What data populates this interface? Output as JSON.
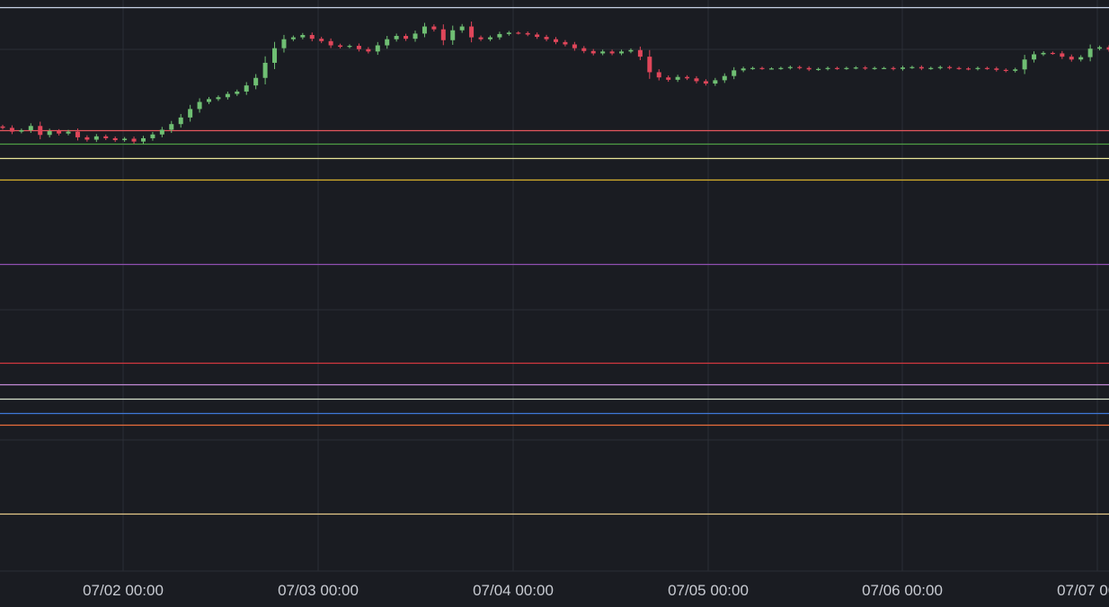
{
  "chart_data": {
    "type": "candlestick",
    "x_range": [
      "07/01 12:00",
      "07/07 08:00"
    ],
    "x_ticks": [
      "07/02 00:00",
      "07/03 00:00",
      "07/04 00:00",
      "07/05 00:00",
      "07/06 00:00",
      "07/07 00:00"
    ],
    "grid": true,
    "colors": {
      "background": "#1a1c22",
      "grid": "#2b2e36",
      "up": "#6fbf73",
      "down": "#e0465a",
      "axis_text": "#c8cbd2"
    },
    "closes": [
      102.4,
      101.6,
      101.9,
      102.8,
      100.9,
      101.7,
      101.2,
      101.6,
      100.4,
      99.9,
      100.6,
      100.2,
      99.8,
      100.1,
      99.5,
      100.2,
      101.0,
      102.0,
      103.2,
      104.6,
      106.4,
      107.9,
      108.5,
      108.9,
      109.6,
      110.1,
      111.4,
      113.0,
      116.2,
      119.3,
      121.2,
      121.6,
      122.1,
      121.3,
      120.8,
      119.9,
      119.6,
      119.8,
      119.1,
      118.6,
      119.9,
      121.2,
      121.9,
      121.3,
      122.4,
      123.9,
      123.3,
      121.0,
      123.1,
      123.9,
      121.6,
      121.2,
      121.6,
      122.3,
      122.6,
      122.5,
      122.2,
      121.7,
      121.2,
      120.6,
      120.1,
      119.3,
      118.7,
      118.2,
      118.6,
      118.2,
      118.6,
      118.9,
      117.5,
      114.2,
      113.1,
      112.6,
      113.2,
      112.9,
      112.3,
      111.8,
      112.5,
      113.4,
      114.6,
      115.0,
      115.1,
      115.0,
      115.0,
      115.1,
      115.3,
      115.1,
      114.8,
      114.9,
      115.1,
      115.0,
      115.1,
      115.2,
      115.0,
      115.1,
      115.1,
      114.9,
      115.2,
      115.3,
      115.0,
      115.1,
      115.3,
      115.1,
      115.0,
      114.9,
      115.1,
      115.0,
      114.7,
      114.5,
      114.8,
      116.9,
      118.0,
      118.3,
      118.2,
      117.5,
      116.9,
      117.4,
      119.2,
      119.5,
      119.0
    ],
    "horizontal_lines": [
      {
        "value": 128.0,
        "color": "#c9d3e8"
      },
      {
        "value": 102.0,
        "color": "#e4565e"
      },
      {
        "value": 99.0,
        "color": "#4f9e45"
      },
      {
        "value": 96.0,
        "color": "#e9e59a"
      },
      {
        "value": 91.5,
        "color": "#d7b12c"
      },
      {
        "value": 73.5,
        "color": "#8f4fb0"
      },
      {
        "value": 52.5,
        "color": "#d2373f"
      },
      {
        "value": 48.0,
        "color": "#c48bd8"
      },
      {
        "value": 45.0,
        "color": "#d8e4cd"
      },
      {
        "value": 42.0,
        "color": "#3f78d8"
      },
      {
        "value": 39.5,
        "color": "#ea6e3c"
      },
      {
        "value": 20.5,
        "color": "#e5c98a"
      }
    ]
  }
}
